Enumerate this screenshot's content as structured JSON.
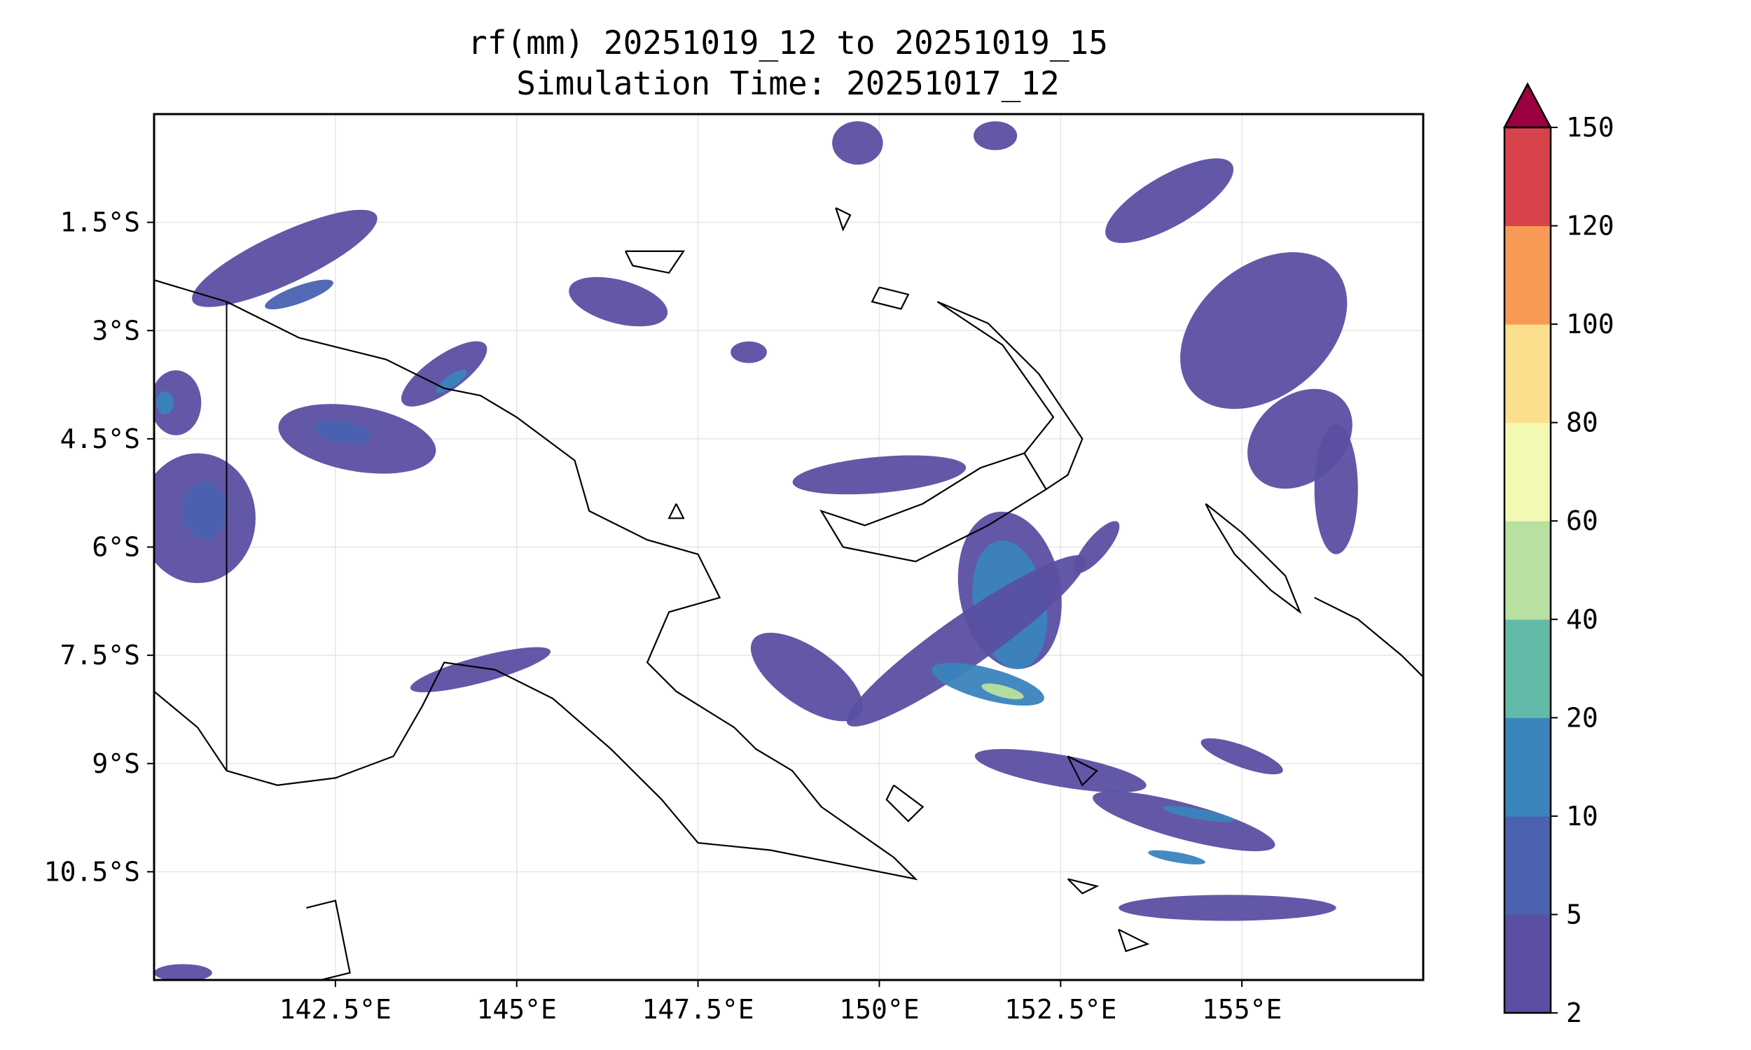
{
  "title": {
    "line1": "rf(mm) 20251019_12 to 20251019_15",
    "line2": "Simulation Time: 20251017_12"
  },
  "map": {
    "lon_range": [
      140.0,
      157.5
    ],
    "lat_range": [
      -12.0,
      0.0
    ],
    "x_ticks": [
      {
        "value": 142.5,
        "label": "142.5°E"
      },
      {
        "value": 145.0,
        "label": "145°E"
      },
      {
        "value": 147.5,
        "label": "147.5°E"
      },
      {
        "value": 150.0,
        "label": "150°E"
      },
      {
        "value": 152.5,
        "label": "152.5°E"
      },
      {
        "value": 155.0,
        "label": "155°E"
      }
    ],
    "y_ticks": [
      {
        "value": -1.5,
        "label": "1.5°S"
      },
      {
        "value": -3.0,
        "label": "3°S"
      },
      {
        "value": -4.5,
        "label": "4.5°S"
      },
      {
        "value": -6.0,
        "label": "6°S"
      },
      {
        "value": -7.5,
        "label": "7.5°S"
      },
      {
        "value": -9.0,
        "label": "9°S"
      },
      {
        "value": -10.5,
        "label": "10.5°S"
      }
    ],
    "gridlines": true,
    "border_lon": 141.0
  },
  "colorbar": {
    "extend": "max",
    "levels": [
      {
        "label": "2",
        "color": "#5a4fa2"
      },
      {
        "label": "5",
        "color": "#4a62b0"
      },
      {
        "label": "10",
        "color": "#3a84bd"
      },
      {
        "label": "20",
        "color": "#62bba8"
      },
      {
        "label": "40",
        "color": "#b8e0a0"
      },
      {
        "label": "60",
        "color": "#f3f8b2"
      },
      {
        "label": "80",
        "color": "#fcdf8c"
      },
      {
        "label": "100",
        "color": "#f89a55"
      },
      {
        "label": "120",
        "color": "#d8434b"
      },
      {
        "label": "150",
        "color": "#9b0041"
      }
    ]
  },
  "rain_regions": [
    {
      "band": 0,
      "lon": 141.8,
      "lat": -2.0,
      "rx": 1.4,
      "ry": 0.35,
      "rot": 25
    },
    {
      "band": 1,
      "lon": 142.0,
      "lat": -2.5,
      "rx": 0.5,
      "ry": 0.12,
      "rot": 20
    },
    {
      "band": 0,
      "lon": 142.8,
      "lat": -4.5,
      "rx": 1.1,
      "ry": 0.45,
      "rot": -10
    },
    {
      "band": 1,
      "lon": 142.6,
      "lat": -4.4,
      "rx": 0.4,
      "ry": 0.15,
      "rot": -10
    },
    {
      "band": 0,
      "lon": 140.6,
      "lat": -5.6,
      "rx": 0.8,
      "ry": 0.9,
      "rot": 0
    },
    {
      "band": 1,
      "lon": 140.7,
      "lat": -5.5,
      "rx": 0.3,
      "ry": 0.4,
      "rot": 0
    },
    {
      "band": 0,
      "lon": 140.3,
      "lat": -4.0,
      "rx": 0.35,
      "ry": 0.45,
      "rot": 0
    },
    {
      "band": 2,
      "lon": 140.15,
      "lat": -4.0,
      "rx": 0.12,
      "ry": 0.16,
      "rot": 0
    },
    {
      "band": 0,
      "lon": 144.0,
      "lat": -3.6,
      "rx": 0.7,
      "ry": 0.25,
      "rot": 35
    },
    {
      "band": 2,
      "lon": 144.1,
      "lat": -3.7,
      "rx": 0.25,
      "ry": 0.08,
      "rot": 35
    },
    {
      "band": 0,
      "lon": 146.4,
      "lat": -2.6,
      "rx": 0.7,
      "ry": 0.3,
      "rot": -15
    },
    {
      "band": 0,
      "lon": 144.5,
      "lat": -7.7,
      "rx": 1.0,
      "ry": 0.18,
      "rot": 15
    },
    {
      "band": 0,
      "lon": 150.0,
      "lat": -5.0,
      "rx": 1.2,
      "ry": 0.25,
      "rot": 5
    },
    {
      "band": 0,
      "lon": 151.8,
      "lat": -6.6,
      "rx": 0.7,
      "ry": 1.1,
      "rot": 10
    },
    {
      "band": 2,
      "lon": 151.8,
      "lat": -6.8,
      "rx": 0.5,
      "ry": 0.9,
      "rot": 10
    },
    {
      "band": 0,
      "lon": 151.2,
      "lat": -7.3,
      "rx": 2.0,
      "ry": 0.35,
      "rot": 35
    },
    {
      "band": 2,
      "lon": 151.5,
      "lat": -7.9,
      "rx": 0.8,
      "ry": 0.22,
      "rot": -15
    },
    {
      "band": 4,
      "lon": 151.7,
      "lat": -8.0,
      "rx": 0.3,
      "ry": 0.08,
      "rot": -15
    },
    {
      "band": 0,
      "lon": 149.0,
      "lat": -7.8,
      "rx": 0.9,
      "ry": 0.4,
      "rot": -35
    },
    {
      "band": 0,
      "lon": 153.0,
      "lat": -6.0,
      "rx": 0.45,
      "ry": 0.15,
      "rot": 50
    },
    {
      "band": 0,
      "lon": 152.5,
      "lat": -9.1,
      "rx": 1.2,
      "ry": 0.22,
      "rot": -10
    },
    {
      "band": 0,
      "lon": 154.2,
      "lat": -9.8,
      "rx": 1.3,
      "ry": 0.25,
      "rot": -15
    },
    {
      "band": 2,
      "lon": 154.4,
      "lat": -9.7,
      "rx": 0.5,
      "ry": 0.07,
      "rot": -10
    },
    {
      "band": 2,
      "lon": 154.1,
      "lat": -10.3,
      "rx": 0.4,
      "ry": 0.07,
      "rot": -10
    },
    {
      "band": 0,
      "lon": 154.8,
      "lat": -11.0,
      "rx": 1.5,
      "ry": 0.18,
      "rot": 0
    },
    {
      "band": 0,
      "lon": 140.4,
      "lat": -11.9,
      "rx": 0.4,
      "ry": 0.12,
      "rot": 0
    },
    {
      "band": 0,
      "lon": 155.3,
      "lat": -3.0,
      "rx": 1.3,
      "ry": 0.9,
      "rot": 40
    },
    {
      "band": 0,
      "lon": 155.8,
      "lat": -4.5,
      "rx": 0.8,
      "ry": 0.6,
      "rot": 40
    },
    {
      "band": 0,
      "lon": 156.3,
      "lat": -5.2,
      "rx": 0.3,
      "ry": 0.9,
      "rot": 0
    },
    {
      "band": 0,
      "lon": 154.0,
      "lat": -1.2,
      "rx": 1.0,
      "ry": 0.35,
      "rot": 30
    },
    {
      "band": 0,
      "lon": 151.6,
      "lat": -0.3,
      "rx": 0.3,
      "ry": 0.2,
      "rot": 0
    },
    {
      "band": 0,
      "lon": 149.7,
      "lat": -0.4,
      "rx": 0.35,
      "ry": 0.3,
      "rot": 0
    },
    {
      "band": 0,
      "lon": 155.0,
      "lat": -8.9,
      "rx": 0.6,
      "ry": 0.15,
      "rot": -20
    },
    {
      "band": 0,
      "lon": 148.2,
      "lat": -3.3,
      "rx": 0.25,
      "ry": 0.15,
      "rot": 0
    }
  ],
  "coastlines": [
    [
      [
        141.0,
        -2.6
      ],
      [
        142.0,
        -3.1
      ],
      [
        143.2,
        -3.4
      ],
      [
        144.0,
        -3.8
      ],
      [
        144.5,
        -3.9
      ],
      [
        145.0,
        -4.2
      ],
      [
        145.8,
        -4.8
      ],
      [
        146.0,
        -5.5
      ],
      [
        146.8,
        -5.9
      ],
      [
        147.5,
        -6.1
      ],
      [
        147.8,
        -6.7
      ],
      [
        147.1,
        -6.9
      ],
      [
        146.8,
        -7.6
      ],
      [
        147.2,
        -8.0
      ],
      [
        148.0,
        -8.5
      ],
      [
        148.3,
        -8.8
      ],
      [
        148.8,
        -9.1
      ],
      [
        149.2,
        -9.6
      ],
      [
        150.2,
        -10.3
      ],
      [
        150.5,
        -10.6
      ],
      [
        149.5,
        -10.4
      ],
      [
        148.5,
        -10.2
      ],
      [
        147.5,
        -10.1
      ],
      [
        147.0,
        -9.5
      ],
      [
        146.3,
        -8.8
      ],
      [
        145.5,
        -8.1
      ],
      [
        144.7,
        -7.7
      ],
      [
        144.0,
        -7.6
      ],
      [
        143.7,
        -8.2
      ],
      [
        143.3,
        -8.9
      ],
      [
        142.5,
        -9.2
      ],
      [
        141.7,
        -9.3
      ],
      [
        141.0,
        -9.1
      ]
    ],
    [
      [
        140.0,
        -2.3
      ],
      [
        141.0,
        -2.6
      ]
    ],
    [
      [
        140.0,
        -8.0
      ],
      [
        140.6,
        -8.5
      ],
      [
        141.0,
        -9.1
      ]
    ],
    [
      [
        149.5,
        -6.0
      ],
      [
        150.5,
        -6.2
      ],
      [
        151.5,
        -5.7
      ],
      [
        152.3,
        -5.2
      ],
      [
        152.0,
        -4.7
      ],
      [
        151.4,
        -4.9
      ],
      [
        150.6,
        -5.4
      ],
      [
        149.8,
        -5.7
      ],
      [
        149.2,
        -5.5
      ],
      [
        149.5,
        -6.0
      ]
    ],
    [
      [
        152.0,
        -4.7
      ],
      [
        152.4,
        -4.2
      ],
      [
        151.7,
        -3.2
      ],
      [
        150.8,
        -2.6
      ],
      [
        151.5,
        -2.9
      ],
      [
        152.2,
        -3.6
      ],
      [
        152.8,
        -4.5
      ],
      [
        152.6,
        -5.0
      ],
      [
        152.3,
        -5.2
      ]
    ],
    [
      [
        154.5,
        -5.4
      ],
      [
        155.0,
        -5.8
      ],
      [
        155.6,
        -6.4
      ],
      [
        155.8,
        -6.9
      ],
      [
        155.4,
        -6.6
      ],
      [
        154.9,
        -6.1
      ],
      [
        154.6,
        -5.6
      ],
      [
        154.5,
        -5.4
      ]
    ],
    [
      [
        156.0,
        -6.7
      ],
      [
        156.6,
        -7.0
      ],
      [
        157.2,
        -7.5
      ],
      [
        157.5,
        -7.8
      ]
    ],
    [
      [
        146.5,
        -1.9
      ],
      [
        147.3,
        -1.9
      ],
      [
        147.1,
        -2.2
      ],
      [
        146.6,
        -2.1
      ],
      [
        146.5,
        -1.9
      ]
    ],
    [
      [
        150.0,
        -2.4
      ],
      [
        150.4,
        -2.5
      ],
      [
        150.3,
        -2.7
      ],
      [
        149.9,
        -2.6
      ],
      [
        150.0,
        -2.4
      ]
    ],
    [
      [
        149.4,
        -1.3
      ],
      [
        149.6,
        -1.4
      ],
      [
        149.5,
        -1.6
      ],
      [
        149.4,
        -1.3
      ]
    ],
    [
      [
        150.2,
        -9.3
      ],
      [
        150.6,
        -9.6
      ],
      [
        150.4,
        -9.8
      ],
      [
        150.1,
        -9.5
      ],
      [
        150.2,
        -9.3
      ]
    ],
    [
      [
        152.6,
        -8.9
      ],
      [
        153.0,
        -9.1
      ],
      [
        152.8,
        -9.3
      ],
      [
        152.6,
        -8.9
      ]
    ],
    [
      [
        152.6,
        -10.6
      ],
      [
        153.0,
        -10.7
      ],
      [
        152.8,
        -10.8
      ],
      [
        152.6,
        -10.6
      ]
    ],
    [
      [
        153.3,
        -11.3
      ],
      [
        153.7,
        -11.5
      ],
      [
        153.4,
        -11.6
      ],
      [
        153.3,
        -11.3
      ]
    ],
    [
      [
        142.1,
        -11.0
      ],
      [
        142.5,
        -10.9
      ],
      [
        142.7,
        -11.9
      ],
      [
        142.3,
        -12.0
      ]
    ],
    [
      [
        147.2,
        -5.4
      ],
      [
        147.3,
        -5.6
      ],
      [
        147.1,
        -5.6
      ],
      [
        147.2,
        -5.4
      ]
    ]
  ]
}
